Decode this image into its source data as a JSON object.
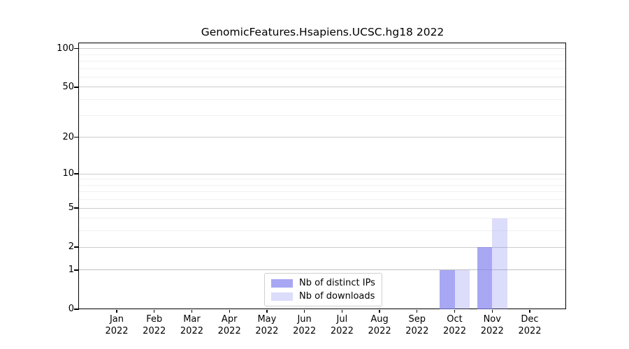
{
  "chart_data": {
    "type": "bar",
    "title": "GenomicFeatures.Hsapiens.UCSC.hg18 2022",
    "categories": [
      "Jan",
      "Feb",
      "Mar",
      "Apr",
      "May",
      "Jun",
      "Jul",
      "Aug",
      "Sep",
      "Oct",
      "Nov",
      "Dec"
    ],
    "x_tick_year": "2022",
    "series": [
      {
        "name": "Nb of distinct IPs",
        "color": "rgba(130,130,240,0.7)",
        "values": [
          0,
          0,
          0,
          0,
          0,
          0,
          0,
          0,
          0,
          1,
          2,
          0
        ]
      },
      {
        "name": "Nb of downloads",
        "color": "rgba(130,130,240,0.28)",
        "values": [
          0,
          0,
          0,
          0,
          0,
          0,
          0,
          0,
          0,
          1,
          4,
          0
        ]
      }
    ],
    "y_axis": {
      "scale": "log1p",
      "ticks": [
        0,
        1,
        2,
        5,
        10,
        20,
        50,
        100
      ],
      "top_value": 110,
      "grid_major": [
        1,
        2,
        5,
        10,
        20,
        50,
        100
      ],
      "grid_minor": [
        3,
        4,
        6,
        7,
        8,
        9,
        30,
        40,
        60,
        70,
        80,
        90
      ]
    },
    "grid": true,
    "legend_position": "bottom-center",
    "colors": {
      "axis": "#000000",
      "grid_major": "#cccccc",
      "grid_minor": "#f1f1f1",
      "background": "#ffffff"
    }
  }
}
